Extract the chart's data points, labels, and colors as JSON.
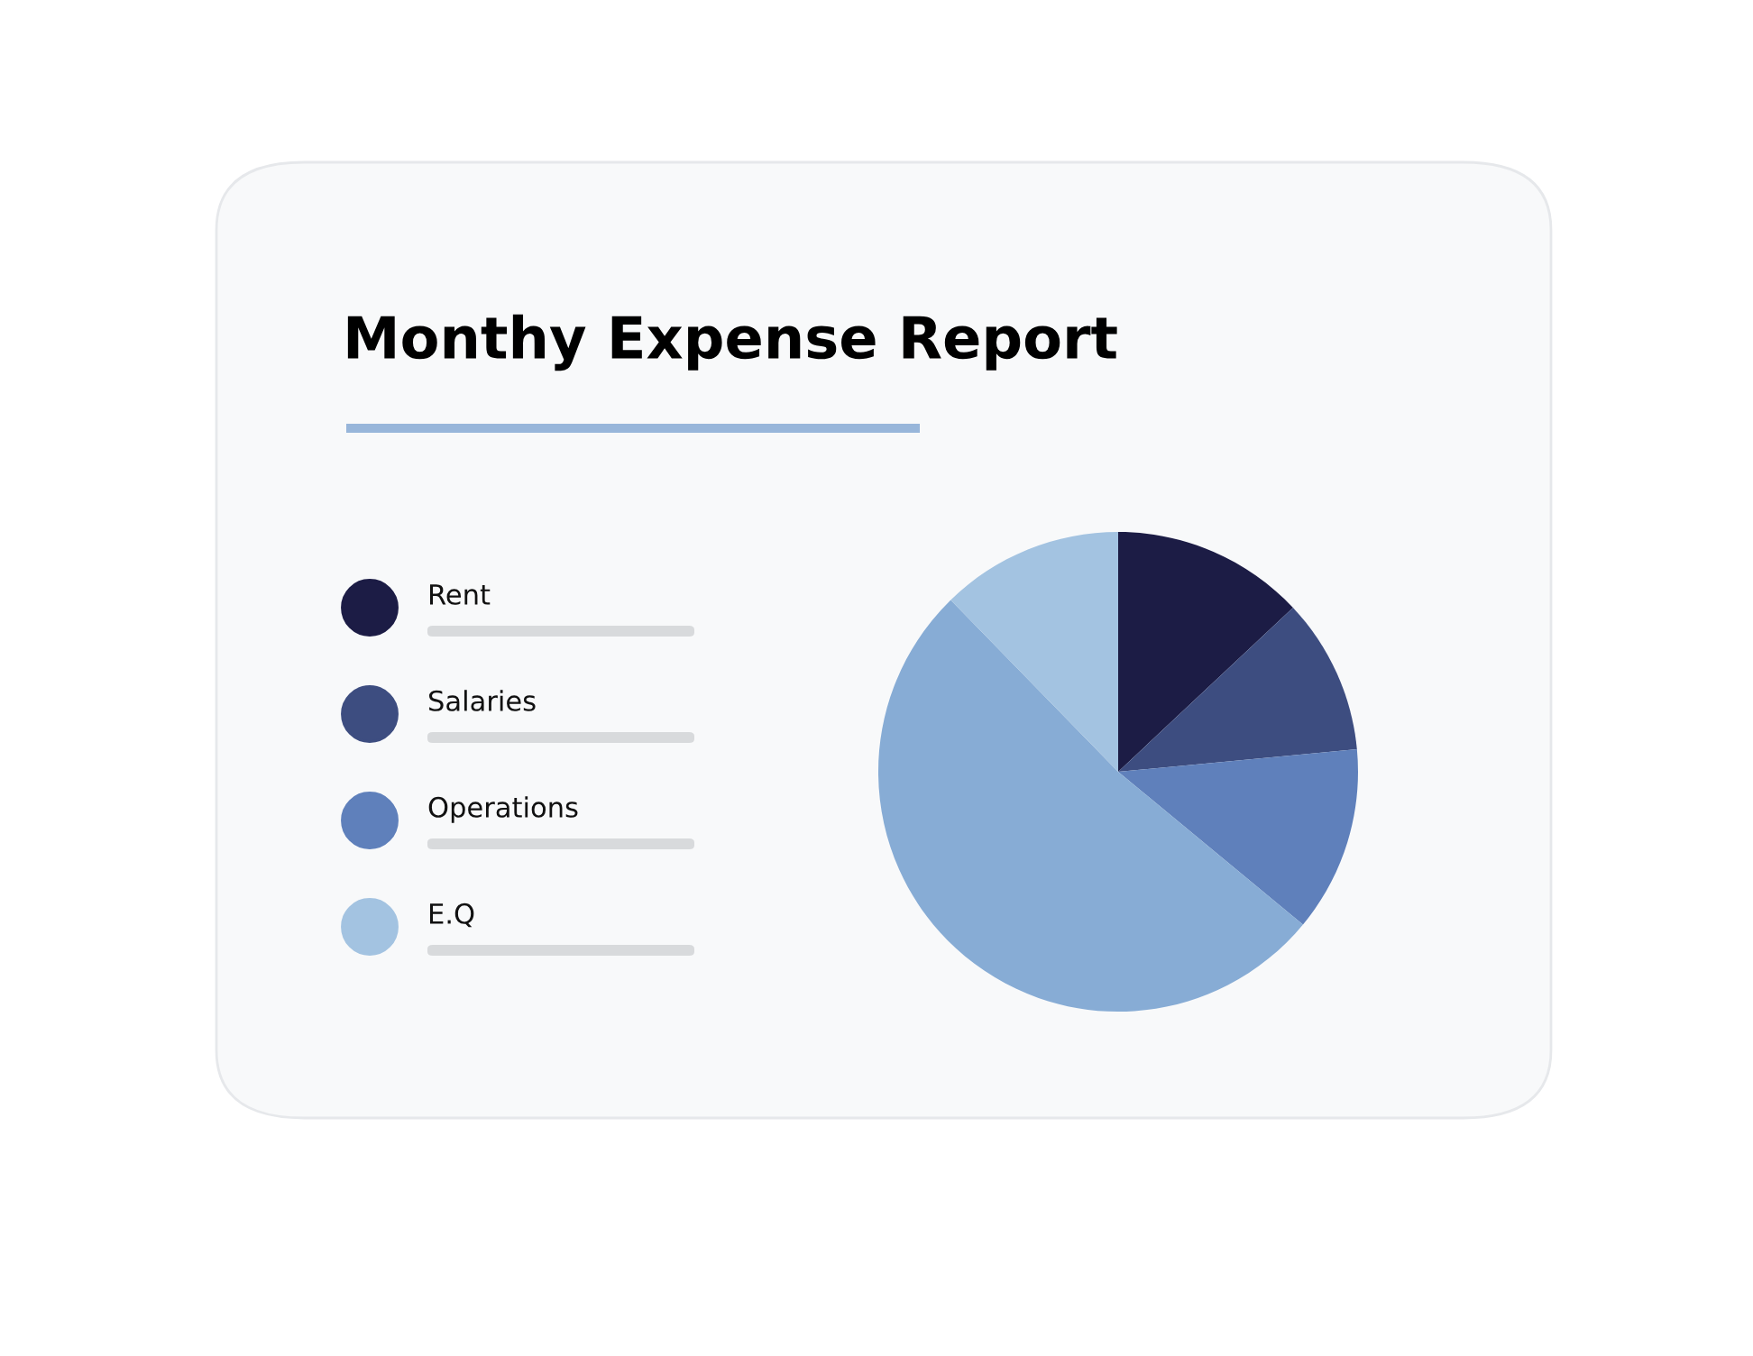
{
  "chart_data": {
    "type": "pie",
    "title": "Monthy Expense Report",
    "categories": [
      "Rent",
      "Salaries",
      "Operations",
      null,
      "E.Q"
    ],
    "values": [
      13,
      10.5,
      12.5,
      51.7,
      12.3
    ],
    "colors": [
      "#1c1c45",
      "#3d4d80",
      "#5f80bb",
      "#87acd5",
      "#a3c3e1"
    ],
    "legend": "left"
  }
}
